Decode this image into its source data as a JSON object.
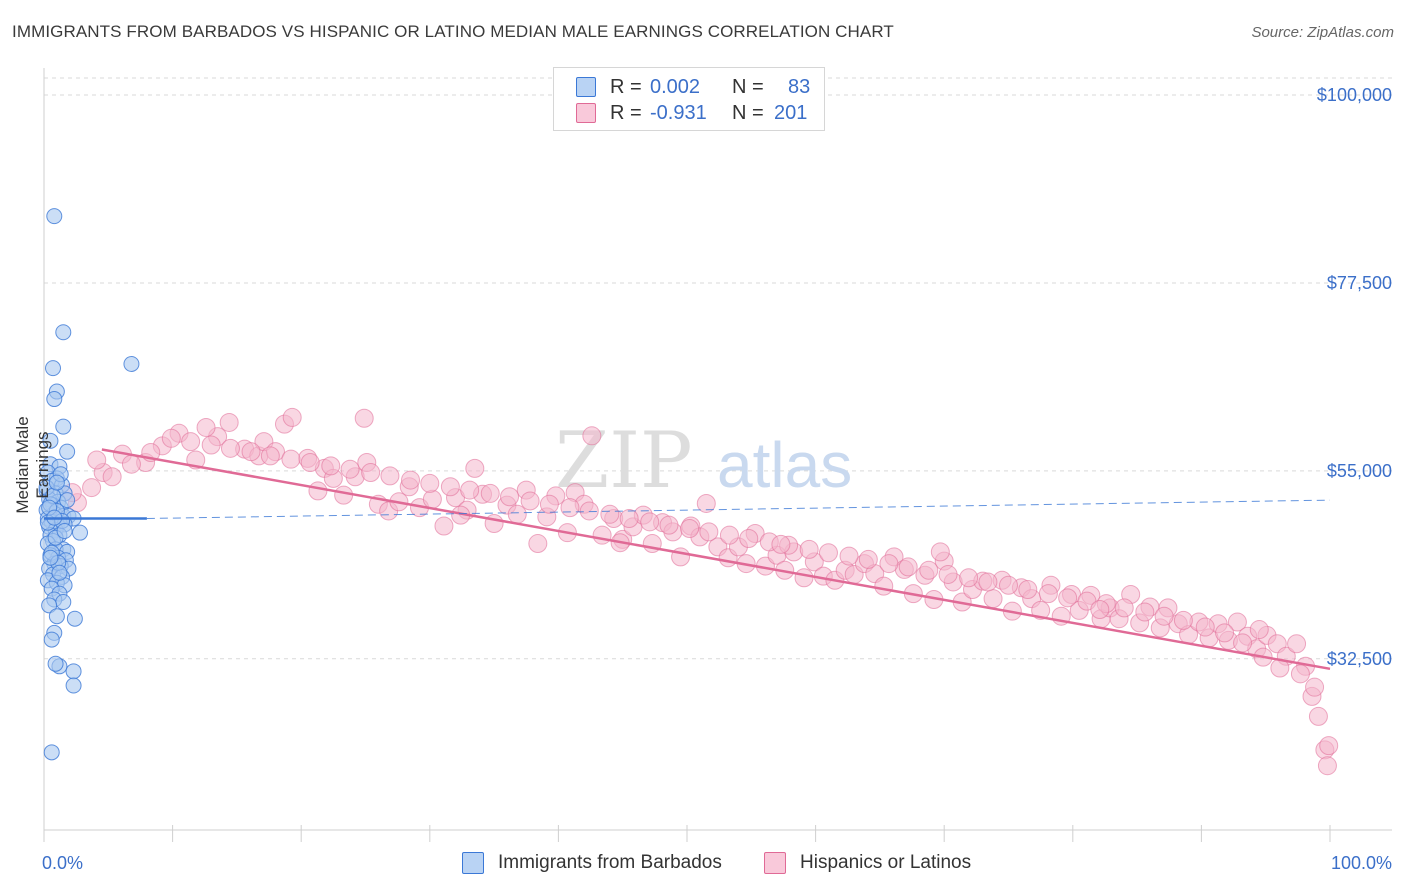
{
  "header": {
    "title": "IMMIGRANTS FROM BARBADOS VS HISPANIC OR LATINO MEDIAN MALE EARNINGS CORRELATION CHART",
    "source": "Source: ZipAtlas.com"
  },
  "watermark": {
    "part1": "ZIP",
    "part2": "atlas"
  },
  "legend_top": {
    "rows": [
      {
        "r_label": "R =",
        "r_value": "0.002",
        "n_label": "N =",
        "n_value": "83"
      },
      {
        "r_label": "R =",
        "r_value": "-0.931",
        "n_label": "N =",
        "n_value": "201"
      }
    ]
  },
  "colors": {
    "blue": "#3b78d6",
    "blue_fill": "#a9c8f0",
    "pink": "#e06a96",
    "pink_fill": "#f4b6cc",
    "tick_text": "#3b6fc9",
    "grid": "#d9d9d9"
  },
  "chart_data": {
    "type": "scatter",
    "title": "IMMIGRANTS FROM BARBADOS VS HISPANIC OR LATINO MEDIAN MALE EARNINGS CORRELATION CHART",
    "xlabel": "",
    "ylabel": "Median Male Earnings",
    "xlim": [
      0,
      100
    ],
    "ylim": [
      12000,
      103000
    ],
    "x_tick_labels": [
      "0.0%",
      "100.0%"
    ],
    "y_ticks": [
      32500,
      55000,
      77500,
      100000
    ],
    "y_tick_labels": [
      "$32,500",
      "$55,000",
      "$77,500",
      "$100,000"
    ],
    "grid": true,
    "legend_position": "bottom",
    "series": [
      {
        "name": "Immigrants from Barbados",
        "color": "#3b78d6",
        "trend": {
          "x": [
            0,
            8
          ],
          "y": [
            49300,
            49300
          ],
          "dashed_extension": {
            "x": [
              8,
              100
            ],
            "y": [
              49300,
              51500
            ]
          }
        },
        "points": [
          [
            0.8,
            85500
          ],
          [
            1.5,
            71600
          ],
          [
            0.7,
            67300
          ],
          [
            6.8,
            67800
          ],
          [
            1.0,
            64500
          ],
          [
            0.8,
            63600
          ],
          [
            1.5,
            60300
          ],
          [
            0.5,
            58600
          ],
          [
            1.8,
            57300
          ],
          [
            0.5,
            55800
          ],
          [
            1.2,
            55500
          ],
          [
            0.3,
            54800
          ],
          [
            1.0,
            54100
          ],
          [
            0.6,
            53800
          ],
          [
            1.4,
            53300
          ],
          [
            0.2,
            52600
          ],
          [
            0.9,
            52300
          ],
          [
            1.6,
            52300
          ],
          [
            0.4,
            51600
          ],
          [
            1.1,
            51300
          ],
          [
            0.7,
            50900
          ],
          [
            1.3,
            50600
          ],
          [
            0.2,
            50300
          ],
          [
            0.8,
            49900
          ],
          [
            1.5,
            49600
          ],
          [
            1.9,
            49600
          ],
          [
            2.3,
            49300
          ],
          [
            0.3,
            49300
          ],
          [
            0.6,
            48900
          ],
          [
            1.0,
            48600
          ],
          [
            1.6,
            48600
          ],
          [
            0.4,
            48300
          ],
          [
            0.9,
            47900
          ],
          [
            2.8,
            47600
          ],
          [
            0.5,
            47300
          ],
          [
            1.2,
            47300
          ],
          [
            0.7,
            46600
          ],
          [
            0.3,
            46300
          ],
          [
            1.5,
            45600
          ],
          [
            0.9,
            45600
          ],
          [
            1.8,
            45300
          ],
          [
            0.5,
            44900
          ],
          [
            1.1,
            44600
          ],
          [
            1.7,
            44300
          ],
          [
            0.8,
            43900
          ],
          [
            1.3,
            43600
          ],
          [
            0.4,
            43300
          ],
          [
            1.9,
            43300
          ],
          [
            0.7,
            42600
          ],
          [
            1.4,
            42300
          ],
          [
            0.3,
            41900
          ],
          [
            1.0,
            41600
          ],
          [
            1.6,
            41300
          ],
          [
            0.6,
            40900
          ],
          [
            1.2,
            40300
          ],
          [
            0.8,
            39600
          ],
          [
            1.5,
            39300
          ],
          [
            0.4,
            38900
          ],
          [
            1.0,
            37600
          ],
          [
            2.4,
            37300
          ],
          [
            0.8,
            35600
          ],
          [
            0.6,
            34800
          ],
          [
            1.2,
            31600
          ],
          [
            0.9,
            31900
          ],
          [
            2.3,
            31000
          ],
          [
            2.3,
            29300
          ],
          [
            0.6,
            21300
          ],
          [
            0.5,
            51000
          ],
          [
            1.0,
            50200
          ],
          [
            0.3,
            48800
          ],
          [
            1.4,
            49000
          ],
          [
            0.9,
            47000
          ],
          [
            0.6,
            45200
          ],
          [
            1.1,
            44000
          ],
          [
            1.8,
            51500
          ],
          [
            0.2,
            53000
          ],
          [
            1.3,
            54600
          ],
          [
            0.7,
            52000
          ],
          [
            1.6,
            47800
          ],
          [
            0.4,
            50600
          ],
          [
            1.0,
            53600
          ],
          [
            0.5,
            44600
          ],
          [
            1.2,
            42800
          ],
          [
            0.8,
            49400
          ]
        ]
      },
      {
        "name": "Hispanics or Latinos",
        "color": "#e06a96",
        "trend": {
          "x": [
            0,
            100
          ],
          "y": [
            58800,
            31300
          ]
        },
        "points": [
          [
            2.6,
            51200
          ],
          [
            4.6,
            54800
          ],
          [
            6.1,
            57000
          ],
          [
            7.9,
            56000
          ],
          [
            9.2,
            58000
          ],
          [
            10.5,
            59500
          ],
          [
            11.8,
            56300
          ],
          [
            13.5,
            59100
          ],
          [
            14.4,
            60800
          ],
          [
            15.6,
            57600
          ],
          [
            16.7,
            56800
          ],
          [
            17.1,
            58500
          ],
          [
            18.0,
            57300
          ],
          [
            18.7,
            60600
          ],
          [
            19.3,
            61400
          ],
          [
            20.5,
            56500
          ],
          [
            21.3,
            52600
          ],
          [
            21.8,
            55300
          ],
          [
            22.5,
            54100
          ],
          [
            23.3,
            52100
          ],
          [
            24.2,
            54300
          ],
          [
            25.1,
            56000
          ],
          [
            26.0,
            51000
          ],
          [
            26.8,
            50200
          ],
          [
            27.6,
            51300
          ],
          [
            28.4,
            53100
          ],
          [
            29.2,
            50600
          ],
          [
            30.2,
            51600
          ],
          [
            31.1,
            48400
          ],
          [
            32.0,
            51800
          ],
          [
            32.9,
            50300
          ],
          [
            33.5,
            55300
          ],
          [
            34.1,
            52200
          ],
          [
            35.0,
            48700
          ],
          [
            36.0,
            50900
          ],
          [
            36.8,
            49800
          ],
          [
            37.5,
            52700
          ],
          [
            38.4,
            46300
          ],
          [
            39.1,
            49500
          ],
          [
            39.8,
            52000
          ],
          [
            40.7,
            47600
          ],
          [
            41.3,
            52400
          ],
          [
            42.0,
            51000
          ],
          [
            42.6,
            59200
          ],
          [
            43.4,
            47300
          ],
          [
            44.3,
            49300
          ],
          [
            45.0,
            46800
          ],
          [
            45.8,
            48300
          ],
          [
            46.6,
            49700
          ],
          [
            47.3,
            46300
          ],
          [
            48.1,
            48800
          ],
          [
            48.9,
            47700
          ],
          [
            49.5,
            44700
          ],
          [
            50.3,
            48400
          ],
          [
            51.0,
            47100
          ],
          [
            51.5,
            51100
          ],
          [
            52.4,
            45900
          ],
          [
            53.2,
            44600
          ],
          [
            54.0,
            45900
          ],
          [
            54.6,
            43900
          ],
          [
            55.3,
            47500
          ],
          [
            56.1,
            43600
          ],
          [
            57.0,
            44900
          ],
          [
            57.6,
            43100
          ],
          [
            58.3,
            45300
          ],
          [
            59.1,
            42200
          ],
          [
            59.9,
            44100
          ],
          [
            60.6,
            42400
          ],
          [
            61.5,
            41900
          ],
          [
            62.3,
            43100
          ],
          [
            63.0,
            42600
          ],
          [
            63.8,
            43900
          ],
          [
            64.6,
            42700
          ],
          [
            65.3,
            41200
          ],
          [
            66.1,
            44700
          ],
          [
            66.9,
            43200
          ],
          [
            67.6,
            40300
          ],
          [
            68.5,
            42500
          ],
          [
            69.2,
            39600
          ],
          [
            70.0,
            44200
          ],
          [
            70.7,
            41700
          ],
          [
            71.4,
            39300
          ],
          [
            72.2,
            40800
          ],
          [
            73.0,
            41800
          ],
          [
            73.8,
            39700
          ],
          [
            74.5,
            41900
          ],
          [
            75.3,
            38200
          ],
          [
            76.0,
            41000
          ],
          [
            76.8,
            39700
          ],
          [
            77.5,
            38300
          ],
          [
            78.3,
            41300
          ],
          [
            79.1,
            37600
          ],
          [
            79.9,
            40200
          ],
          [
            80.5,
            38300
          ],
          [
            81.4,
            40100
          ],
          [
            82.2,
            37300
          ],
          [
            82.9,
            38600
          ],
          [
            83.6,
            37300
          ],
          [
            84.5,
            40200
          ],
          [
            85.2,
            36800
          ],
          [
            86.0,
            38700
          ],
          [
            86.8,
            36200
          ],
          [
            87.4,
            38600
          ],
          [
            88.2,
            36700
          ],
          [
            89.0,
            35400
          ],
          [
            89.8,
            36900
          ],
          [
            90.6,
            35000
          ],
          [
            91.3,
            36700
          ],
          [
            92.1,
            34700
          ],
          [
            92.8,
            36900
          ],
          [
            93.6,
            35200
          ],
          [
            94.3,
            33700
          ],
          [
            95.1,
            35300
          ],
          [
            95.9,
            34300
          ],
          [
            96.6,
            32800
          ],
          [
            97.4,
            34300
          ],
          [
            98.1,
            31600
          ],
          [
            98.6,
            28000
          ],
          [
            99.1,
            25600
          ],
          [
            99.6,
            21600
          ],
          [
            99.8,
            19700
          ],
          [
            99.9,
            22100
          ],
          [
            98.8,
            29100
          ],
          [
            97.7,
            30700
          ],
          [
            96.1,
            31400
          ],
          [
            94.8,
            32700
          ],
          [
            93.2,
            34400
          ],
          [
            91.8,
            35600
          ],
          [
            90.3,
            36300
          ],
          [
            88.6,
            37100
          ],
          [
            87.1,
            37600
          ],
          [
            85.6,
            38100
          ],
          [
            84.0,
            38600
          ],
          [
            82.6,
            39100
          ],
          [
            81.1,
            39400
          ],
          [
            79.6,
            39800
          ],
          [
            78.1,
            40300
          ],
          [
            76.5,
            40800
          ],
          [
            75.0,
            41300
          ],
          [
            73.4,
            41700
          ],
          [
            71.9,
            42200
          ],
          [
            70.3,
            42600
          ],
          [
            68.8,
            43100
          ],
          [
            67.2,
            43500
          ],
          [
            65.7,
            43900
          ],
          [
            64.1,
            44400
          ],
          [
            62.6,
            44800
          ],
          [
            61.0,
            45200
          ],
          [
            59.5,
            45600
          ],
          [
            57.9,
            46100
          ],
          [
            56.4,
            46500
          ],
          [
            54.8,
            46900
          ],
          [
            53.3,
            47300
          ],
          [
            51.7,
            47700
          ],
          [
            50.2,
            48100
          ],
          [
            48.6,
            48500
          ],
          [
            47.1,
            48900
          ],
          [
            45.5,
            49300
          ],
          [
            44.0,
            49800
          ],
          [
            42.4,
            50200
          ],
          [
            40.9,
            50600
          ],
          [
            39.3,
            51000
          ],
          [
            37.8,
            51400
          ],
          [
            36.2,
            51900
          ],
          [
            34.7,
            52300
          ],
          [
            33.1,
            52700
          ],
          [
            31.6,
            53100
          ],
          [
            30.0,
            53500
          ],
          [
            28.5,
            53900
          ],
          [
            26.9,
            54400
          ],
          [
            25.4,
            54800
          ],
          [
            23.8,
            55200
          ],
          [
            22.3,
            55600
          ],
          [
            20.7,
            56000
          ],
          [
            19.2,
            56400
          ],
          [
            17.6,
            56800
          ],
          [
            16.1,
            57300
          ],
          [
            14.5,
            57700
          ],
          [
            13.0,
            58100
          ],
          [
            11.4,
            58500
          ],
          [
            9.9,
            58900
          ],
          [
            8.3,
            57200
          ],
          [
            6.8,
            55800
          ],
          [
            5.3,
            54300
          ],
          [
            3.7,
            53000
          ],
          [
            2.2,
            52400
          ],
          [
            4.1,
            56300
          ],
          [
            12.6,
            60200
          ],
          [
            24.9,
            61300
          ],
          [
            32.4,
            49700
          ],
          [
            44.8,
            46400
          ],
          [
            57.3,
            46200
          ],
          [
            69.7,
            45300
          ],
          [
            82.1,
            38400
          ],
          [
            94.5,
            36000
          ]
        ]
      }
    ]
  },
  "legend_bottom": {
    "items": [
      {
        "label": "Immigrants from Barbados"
      },
      {
        "label": "Hispanics or Latinos"
      }
    ]
  }
}
